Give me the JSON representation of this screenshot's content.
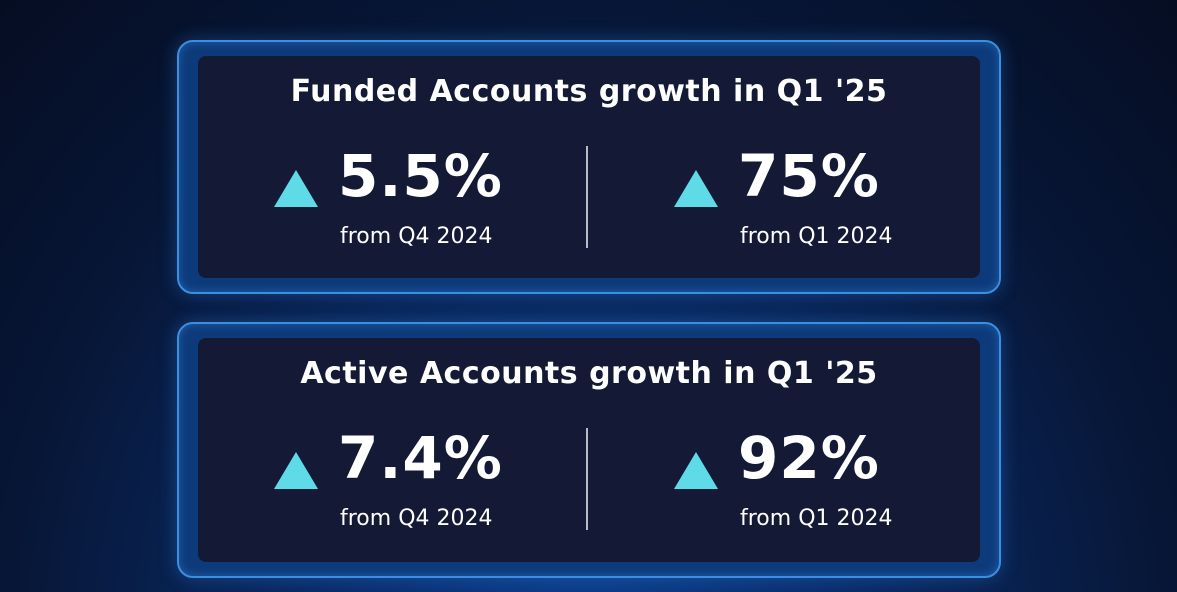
{
  "cards": [
    {
      "title": "Funded Accounts growth in Q1 '25",
      "stats": [
        {
          "icon": "triangle-up-icon",
          "value": "5.5%",
          "caption": "from Q4 2024"
        },
        {
          "icon": "triangle-up-icon",
          "value": "75%",
          "caption": "from Q1 2024"
        }
      ]
    },
    {
      "title": "Active Accounts growth in Q1 '25",
      "stats": [
        {
          "icon": "triangle-up-icon",
          "value": "7.4%",
          "caption": "from Q4 2024"
        },
        {
          "icon": "triangle-up-icon",
          "value": "92%",
          "caption": "from Q1 2024"
        }
      ]
    }
  ],
  "colors": {
    "accent": "#5fdbe8",
    "panel_border": "#3a8fe0",
    "panel_fill": "#0d3a7a",
    "card_fill": "#141a35"
  }
}
